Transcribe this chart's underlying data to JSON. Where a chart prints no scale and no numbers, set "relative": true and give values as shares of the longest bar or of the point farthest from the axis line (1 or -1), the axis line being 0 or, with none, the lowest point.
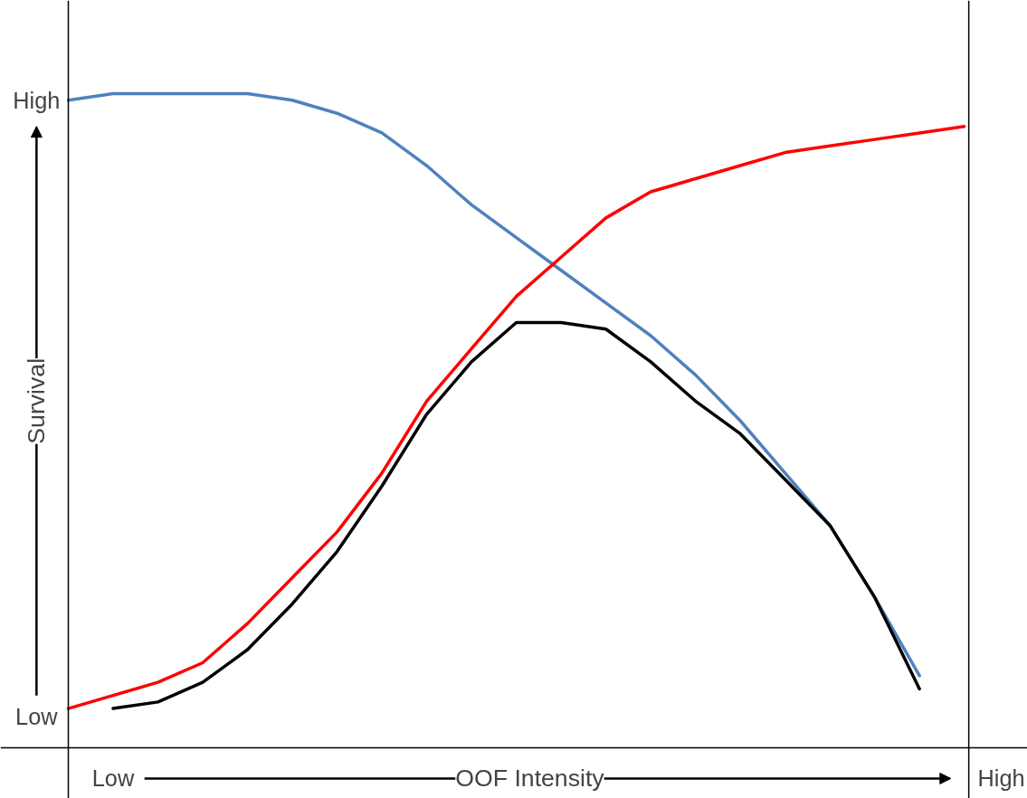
{
  "chart_data": {
    "type": "line",
    "relative": true,
    "xlabel": "OOF Intensity",
    "ylabel": "Survival",
    "categories": [
      null,
      null,
      null,
      null,
      null,
      null,
      null,
      null,
      null,
      null,
      null,
      null,
      null,
      null,
      null,
      null,
      null,
      null,
      null,
      null,
      null
    ],
    "series": [
      {
        "color": "#4f81bd",
        "values": [
          0.99,
          1.0,
          1.0,
          1.0,
          1.0,
          0.99,
          0.97,
          0.94,
          0.89,
          0.83,
          0.78,
          0.73,
          0.68,
          0.63,
          0.57,
          0.5,
          0.42,
          0.34,
          0.23,
          0.11,
          null
        ]
      },
      {
        "color": "#ff0000",
        "values": [
          0.06,
          0.08,
          0.1,
          0.13,
          0.19,
          0.26,
          0.33,
          0.42,
          0.53,
          0.61,
          0.69,
          0.75,
          0.81,
          0.85,
          0.87,
          0.89,
          0.91,
          0.92,
          0.93,
          0.94,
          0.95
        ]
      },
      {
        "color": "#000000",
        "values": [
          null,
          0.06,
          0.07,
          0.1,
          0.15,
          0.22,
          0.3,
          0.4,
          0.51,
          0.59,
          0.65,
          0.65,
          0.64,
          0.59,
          0.53,
          0.48,
          0.41,
          0.34,
          0.23,
          0.09,
          null
        ]
      }
    ],
    "annotations": [
      "High",
      "Low",
      "Low",
      "High"
    ]
  }
}
